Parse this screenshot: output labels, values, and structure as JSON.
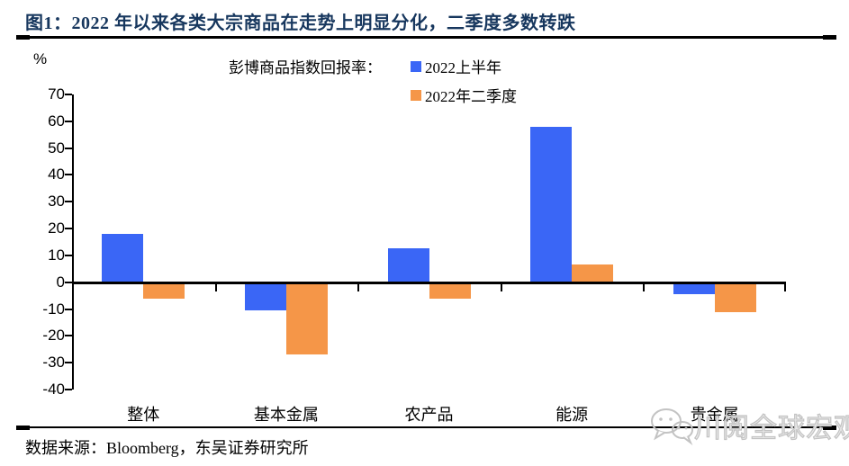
{
  "figure": {
    "title": "图1：2022 年以来各类大宗商品在走势上明显分化，二季度多数转跌",
    "source": "数据来源：Bloomberg，东吴证券研究所",
    "watermark": "川阅全球宏观",
    "watermark_icon": "wechat-chat-bubbles-icon",
    "title_color": "#17375E"
  },
  "chart_data": {
    "type": "bar",
    "title": "彭博商品指数回报率：",
    "unit_label": "%",
    "categories": [
      "整体",
      "基本金属",
      "农产品",
      "能源",
      "贵金属"
    ],
    "series": [
      {
        "name": "2022上半年",
        "color": "#3A66F6",
        "values": [
          18,
          -10.5,
          12.5,
          58,
          -4.5
        ]
      },
      {
        "name": "2022年二季度",
        "color": "#F59648",
        "values": [
          -6,
          -27,
          -6,
          6.5,
          -11
        ]
      }
    ],
    "ylim": [
      -40,
      70
    ],
    "ytick_step": 10,
    "xlabel": "",
    "ylabel": "%",
    "legend_position": "top-center",
    "grid": false,
    "axis_color": "#000000"
  }
}
